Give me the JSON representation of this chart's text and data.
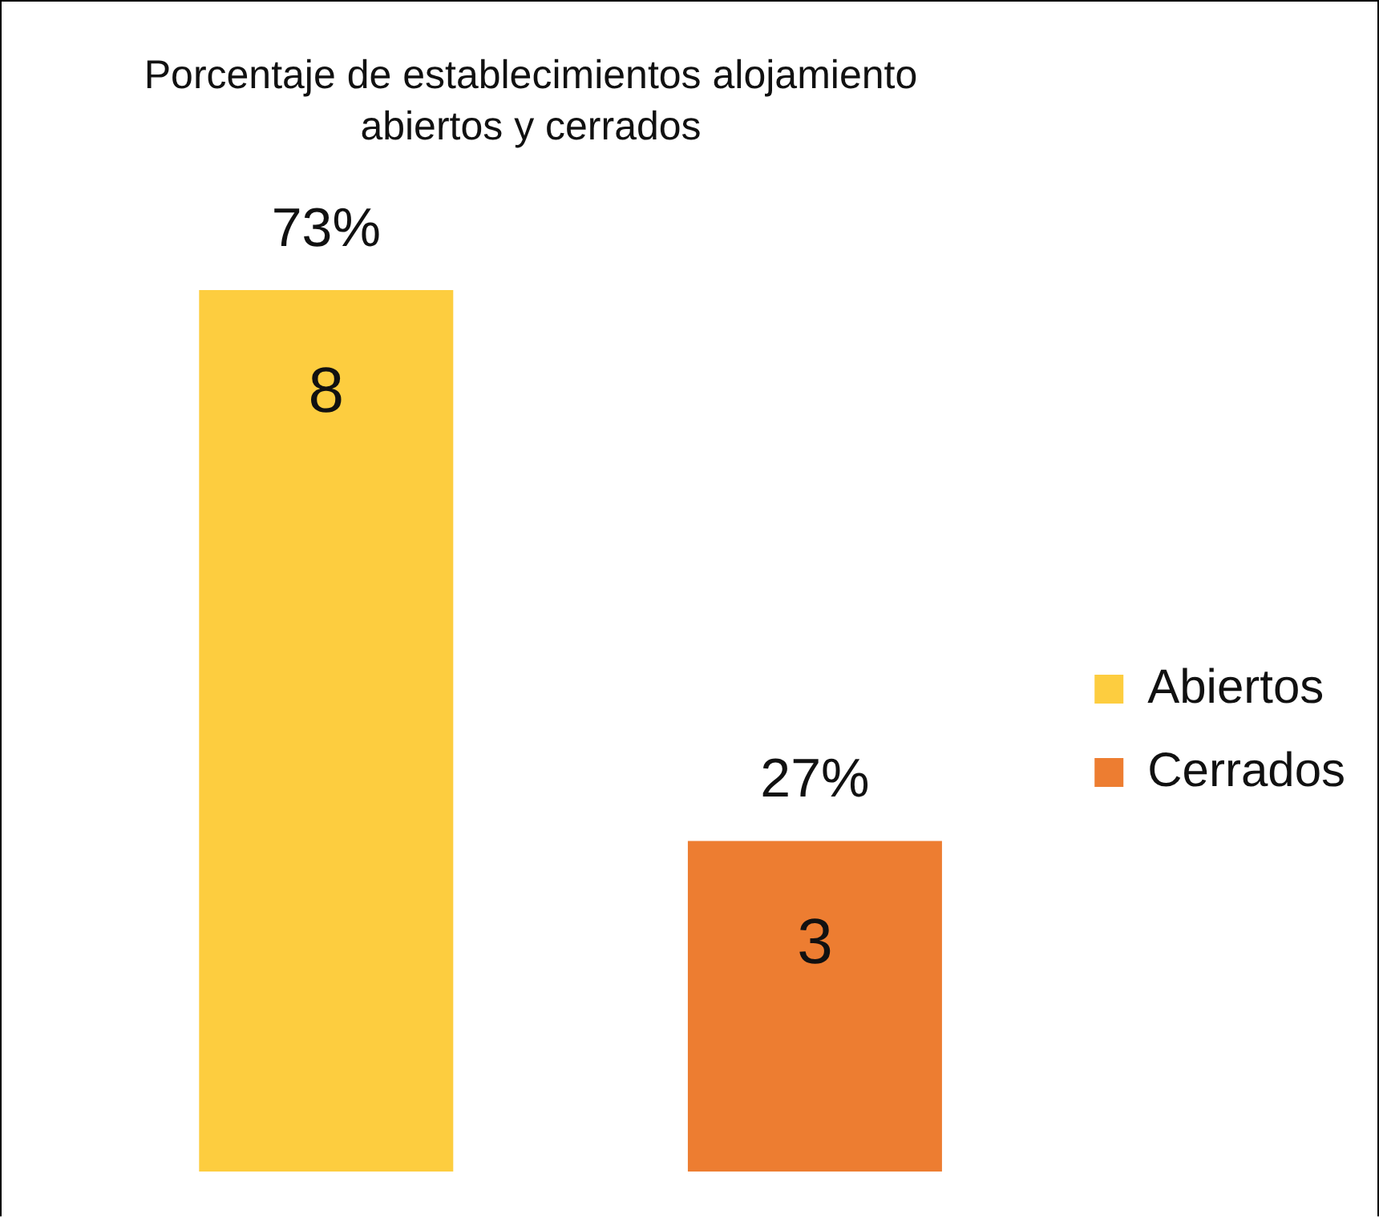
{
  "chart_data": {
    "type": "bar",
    "title": "Porcentaje de establecimientos alojamiento abiertos y cerrados",
    "categories": [
      null,
      null
    ],
    "series": [
      {
        "name": "Abiertos",
        "color": "#fdcd3f",
        "values": [
          8,
          null
        ]
      },
      {
        "name": "Cerrados",
        "color": "#ed7d31",
        "values": [
          null,
          3
        ]
      }
    ],
    "data_labels": true,
    "annotations": [
      "73%",
      "27%"
    ],
    "stacked": true,
    "legend": "right"
  }
}
